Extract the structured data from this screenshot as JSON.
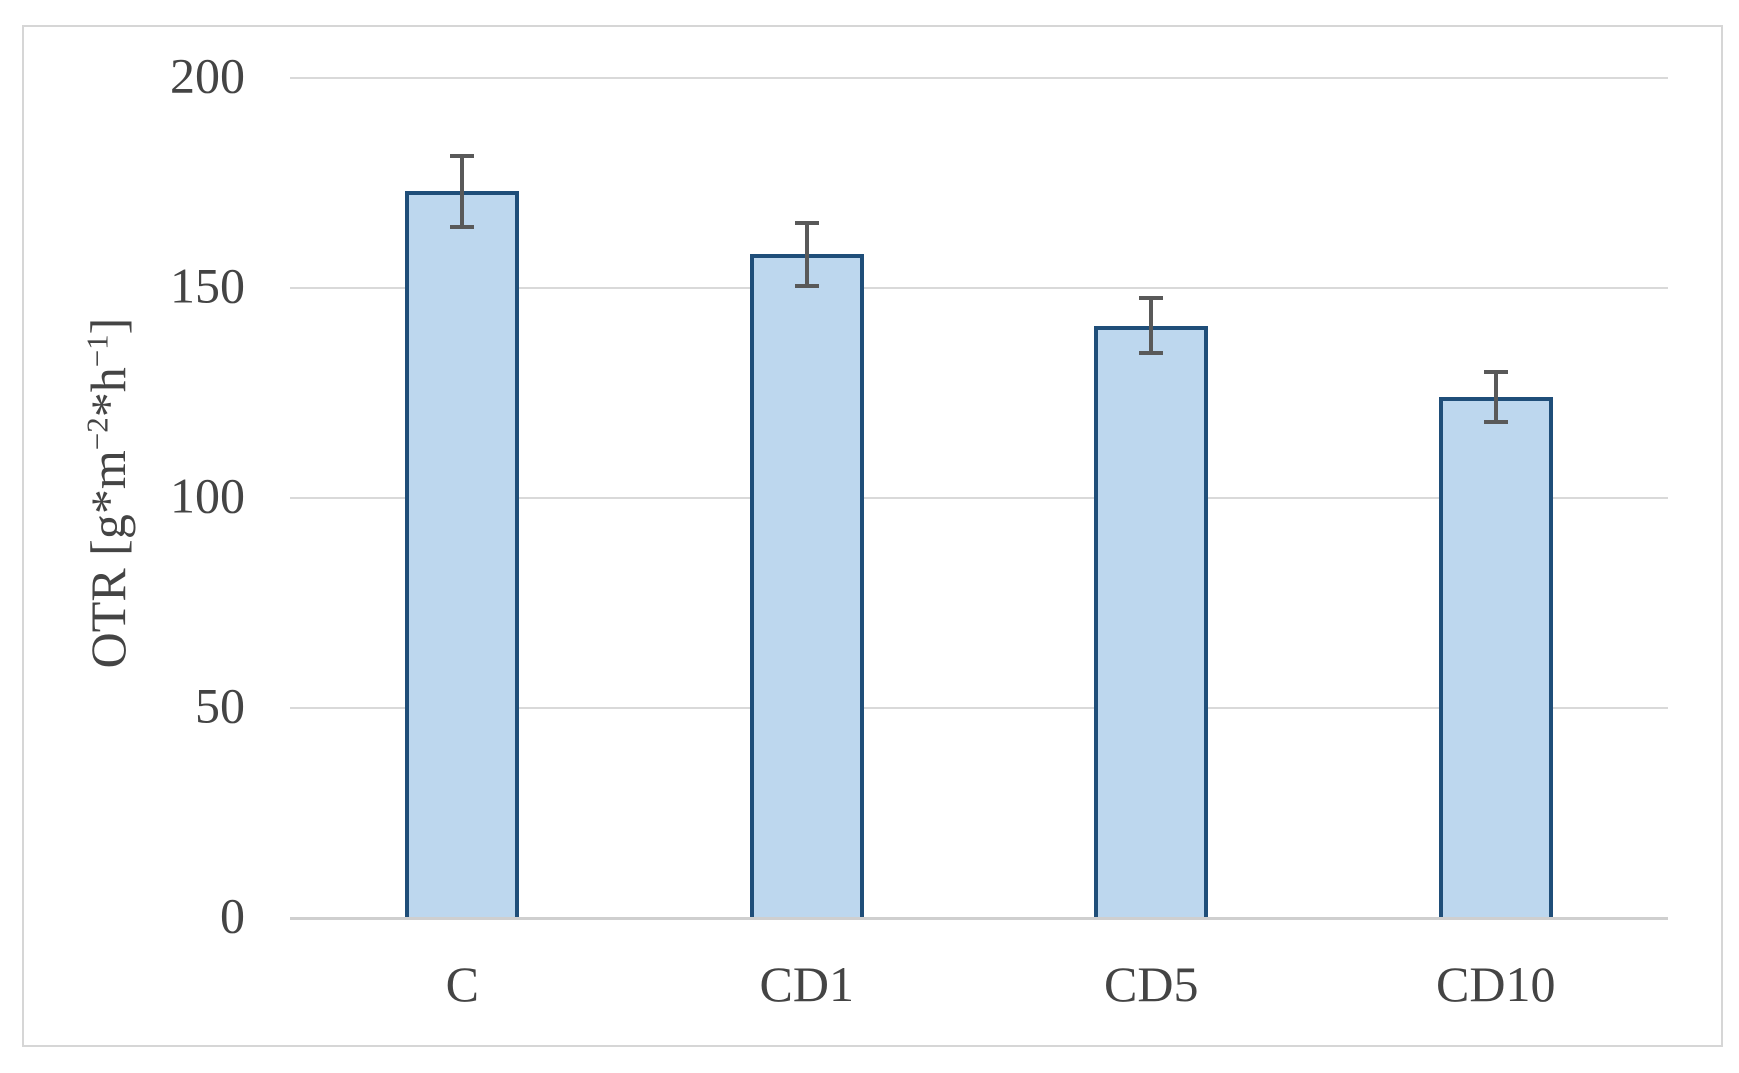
{
  "figure": {
    "background_color": "#ffffff",
    "frame_border_color": "#d6d6d6"
  },
  "chart_data": {
    "type": "bar",
    "title": "",
    "categories": [
      "C",
      "CD1",
      "CD5",
      "CD10"
    ],
    "values": [
      173,
      158,
      141,
      124
    ],
    "error_bars": [
      9,
      8,
      7,
      6.5
    ],
    "ylabel": "OTR [g*m−2*h−1]",
    "ylabel_parts": [
      {
        "text": "OTR [g*m",
        "sup": false
      },
      {
        "text": "−2",
        "sup": true
      },
      {
        "text": "*h",
        "sup": false
      },
      {
        "text": "−1",
        "sup": true
      },
      {
        "text": "]",
        "sup": false
      }
    ],
    "xlabel": "",
    "ylim": [
      0,
      200
    ],
    "yticks": [
      0,
      50,
      100,
      150,
      200
    ],
    "grid": true,
    "legend": null,
    "colors": {
      "bar_fill": "#bdd7ee",
      "bar_border": "#1f4e79",
      "error_bar": "#595959",
      "gridline": "#d9d9d9",
      "axis_line": "#cfcfcf",
      "text": "#444444"
    }
  }
}
